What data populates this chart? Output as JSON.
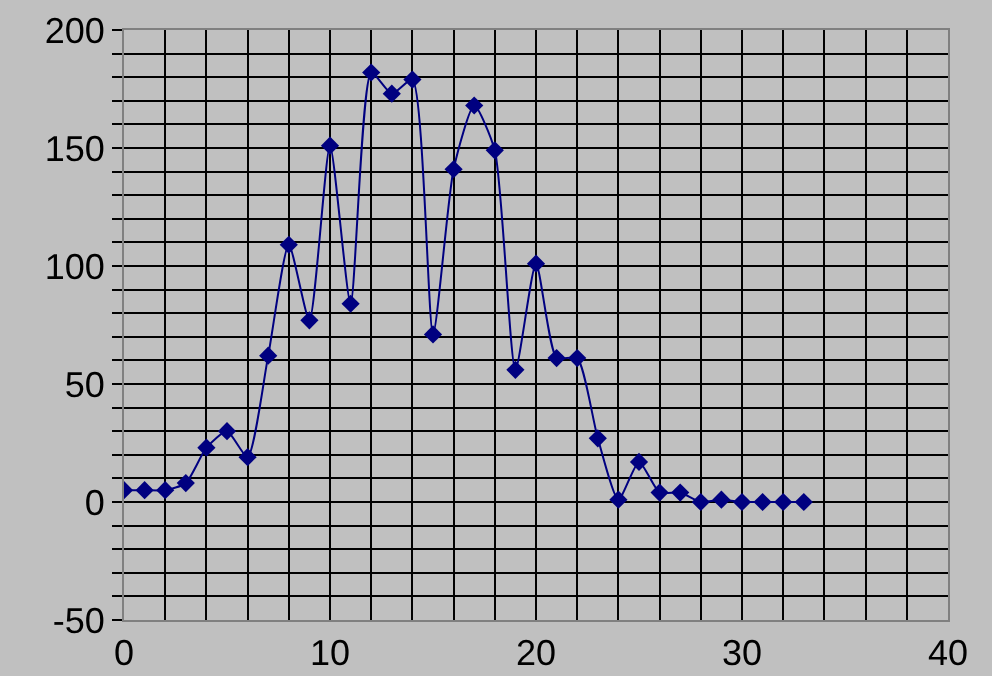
{
  "chart_data": {
    "type": "line",
    "x": [
      0,
      1,
      2,
      3,
      4,
      5,
      6,
      7,
      8,
      9,
      10,
      11,
      12,
      13,
      14,
      15,
      16,
      17,
      18,
      19,
      20,
      21,
      22,
      23,
      24,
      25,
      26,
      27,
      28,
      29,
      30,
      31,
      32,
      33
    ],
    "series": [
      {
        "color": "#000080",
        "values": [
          5,
          5,
          5,
          8,
          23,
          30,
          19,
          62,
          109,
          77,
          151,
          84,
          182,
          173,
          179,
          71,
          141,
          168,
          149,
          56,
          101,
          61,
          61,
          27,
          1,
          17,
          4,
          4,
          0,
          1,
          0,
          0,
          0,
          0
        ]
      }
    ],
    "xlim": [
      0,
      40
    ],
    "xticks": [
      0,
      {
        "value": 2,
        "label": null
      },
      {
        "value": 4,
        "label": null
      },
      {
        "value": 6,
        "label": null
      },
      {
        "value": 8,
        "label": null
      },
      10,
      {
        "value": 12,
        "label": null
      },
      {
        "value": 14,
        "label": null
      },
      {
        "value": 16,
        "label": null
      },
      {
        "value": 18,
        "label": null
      },
      20,
      {
        "value": 22,
        "label": null
      },
      {
        "value": 24,
        "label": null
      },
      {
        "value": 26,
        "label": null
      },
      {
        "value": 28,
        "label": null
      },
      30,
      {
        "value": 32,
        "label": null
      },
      {
        "value": 34,
        "label": null
      },
      {
        "value": 36,
        "label": null
      },
      {
        "value": 38,
        "label": null
      },
      40
    ],
    "ylim": [
      -50,
      200
    ],
    "yticks": [
      -50,
      {
        "value": -40,
        "label": null
      },
      {
        "value": -30,
        "label": null
      },
      {
        "value": -20,
        "label": null
      },
      {
        "value": -10,
        "label": null
      },
      0,
      {
        "value": 10,
        "label": null
      },
      {
        "value": 20,
        "label": null
      },
      {
        "value": 30,
        "label": null
      },
      {
        "value": 40,
        "label": null
      },
      50,
      {
        "value": 60,
        "label": null
      },
      {
        "value": 70,
        "label": null
      },
      {
        "value": 80,
        "label": null
      },
      {
        "value": 90,
        "label": null
      },
      100,
      {
        "value": 110,
        "label": null
      },
      {
        "value": 120,
        "label": null
      },
      {
        "value": 130,
        "label": null
      },
      {
        "value": 140,
        "label": null
      },
      150,
      {
        "value": 160,
        "label": null
      },
      {
        "value": 170,
        "label": null
      },
      {
        "value": 180,
        "label": null
      },
      {
        "value": 190,
        "label": null
      },
      200
    ],
    "grid": true,
    "marker": "diamond",
    "line_style": "solid",
    "legend": false
  }
}
